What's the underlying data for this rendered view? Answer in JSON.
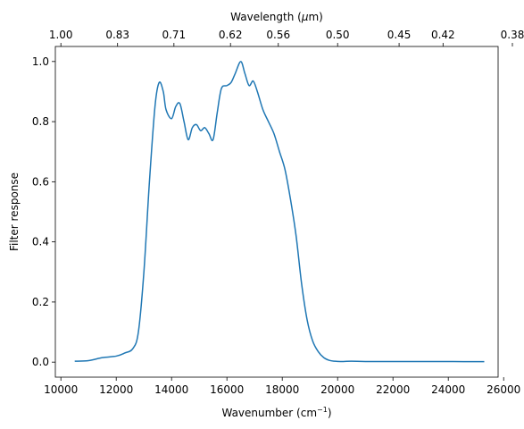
{
  "chart_data": {
    "type": "line",
    "xlabel_bottom": "Wavenumber (cm",
    "xlabel_bottom_sup": "−1",
    "xlabel_bottom_end": ")",
    "xlabel_top_pre": "Wavelength (",
    "xlabel_top_mu": "μ",
    "xlabel_top_post": "m)",
    "ylabel": "Filter response",
    "xlim": [
      9800,
      25800
    ],
    "ylim": [
      -0.05,
      1.05
    ],
    "x_ticks": [
      10000,
      12000,
      14000,
      16000,
      18000,
      20000,
      22000,
      24000,
      26000
    ],
    "x_tick_labels": [
      "10000",
      "12000",
      "14000",
      "16000",
      "18000",
      "20000",
      "22000",
      "24000",
      "26000"
    ],
    "y_ticks": [
      0.0,
      0.2,
      0.4,
      0.6,
      0.8,
      1.0
    ],
    "y_tick_labels": [
      "0.0",
      "0.2",
      "0.4",
      "0.6",
      "0.8",
      "1.0"
    ],
    "top_ticks_wavenumber": [
      10000,
      12048,
      14085,
      16129,
      17857,
      20000,
      22222,
      23810,
      26316
    ],
    "top_tick_labels": [
      "1.00",
      "0.83",
      "0.71",
      "0.62",
      "0.56",
      "0.50",
      "0.45",
      "0.42",
      "0.38"
    ],
    "line_color": "#1f77b4",
    "series": [
      {
        "x": [
          10500,
          11000,
          11500,
          12000,
          12300,
          12600,
          12800,
          13000,
          13200,
          13400,
          13550,
          13700,
          13800,
          14000,
          14150,
          14300,
          14450,
          14600,
          14750,
          14900,
          15050,
          15200,
          15350,
          15500,
          15650,
          15800,
          16000,
          16150,
          16300,
          16500,
          16650,
          16800,
          16950,
          17100,
          17300,
          17500,
          17700,
          17900,
          18100,
          18300,
          18500,
          18700,
          18900,
          19100,
          19300,
          19500,
          19700,
          19900,
          20100,
          20500,
          21000,
          22000,
          23000,
          24000,
          25300
        ],
        "y": [
          0.003,
          0.005,
          0.015,
          0.02,
          0.03,
          0.045,
          0.1,
          0.3,
          0.6,
          0.85,
          0.93,
          0.9,
          0.84,
          0.81,
          0.85,
          0.86,
          0.8,
          0.74,
          0.78,
          0.79,
          0.77,
          0.78,
          0.76,
          0.74,
          0.83,
          0.91,
          0.92,
          0.93,
          0.96,
          1.0,
          0.96,
          0.92,
          0.935,
          0.9,
          0.84,
          0.8,
          0.76,
          0.7,
          0.64,
          0.54,
          0.42,
          0.26,
          0.14,
          0.07,
          0.035,
          0.015,
          0.006,
          0.003,
          0.002,
          0.003,
          0.002,
          0.002,
          0.002,
          0.002,
          0.0015
        ]
      }
    ]
  }
}
